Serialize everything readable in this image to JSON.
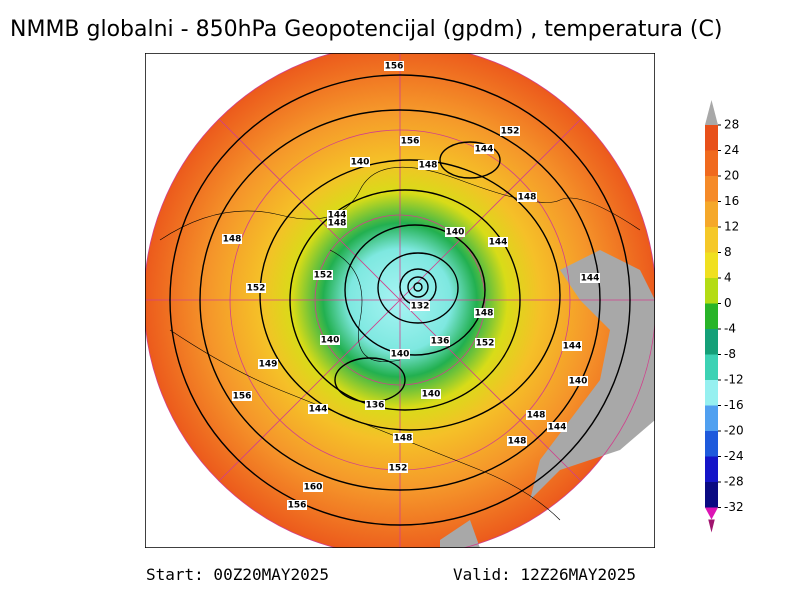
{
  "title": "NMMB globalni - 850hPa Geopotencijal (gpdm) , temperatura (C)",
  "colorbar": {
    "labels": [
      28,
      24,
      20,
      16,
      12,
      8,
      4,
      0,
      -4,
      -8,
      -12,
      -16,
      -20,
      -24,
      -28,
      -32
    ],
    "colors": [
      "#e8501a",
      "#f06a1e",
      "#f58a28",
      "#f5a82a",
      "#f5c828",
      "#f0e020",
      "#b4dc14",
      "#28b428",
      "#14a078",
      "#3cd2b4",
      "#96f0f0",
      "#50a0f0",
      "#1e5adc",
      "#1414c8",
      "#0a0a82"
    ],
    "over_color": "#a8a8a8",
    "under_color": "#a0146e",
    "low_color": "#dc14b4"
  },
  "contour_labels": [
    156,
    156,
    152,
    144,
    140,
    148,
    148,
    144,
    148,
    148,
    140,
    144,
    152,
    152,
    144,
    132,
    148,
    136,
    140,
    152,
    140,
    144,
    149,
    140,
    156,
    144,
    136,
    140,
    148,
    144,
    148,
    148,
    152,
    160,
    156
  ],
  "footer": {
    "start": "Start: 00Z20MAY2025",
    "valid": "Valid: 12Z26MAY2025"
  }
}
